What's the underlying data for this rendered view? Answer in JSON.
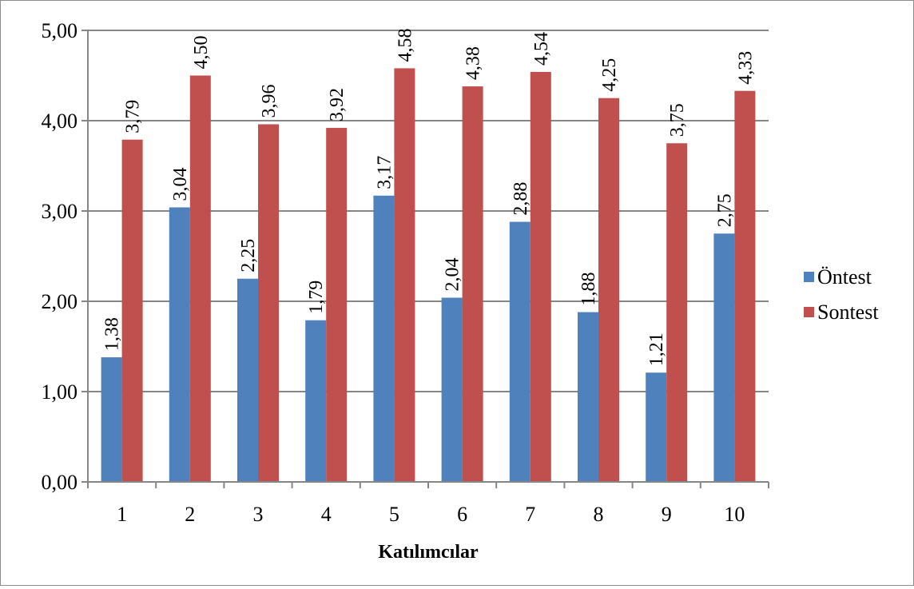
{
  "chart_data": {
    "type": "bar",
    "title": "",
    "xlabel": "Katılımcılar",
    "ylabel": "",
    "ylim": [
      0,
      5
    ],
    "y_ticks": [
      "0,00",
      "1,00",
      "2,00",
      "3,00",
      "4,00",
      "5,00"
    ],
    "grid": true,
    "legend_position": "right",
    "categories": [
      "1",
      "2",
      "3",
      "4",
      "5",
      "6",
      "7",
      "8",
      "9",
      "10"
    ],
    "series": [
      {
        "name": "Öntest",
        "color": "#4F81BD",
        "values": [
          1.38,
          3.04,
          2.25,
          1.79,
          3.17,
          2.04,
          2.88,
          1.88,
          1.21,
          2.75
        ],
        "labels": [
          "1,38",
          "3,04",
          "2,25",
          "1,79",
          "3,17",
          "2,04",
          "2,88",
          "1,88",
          "1,21",
          "2,75"
        ]
      },
      {
        "name": "Sontest",
        "color": "#C0504D",
        "values": [
          3.79,
          4.5,
          3.96,
          3.92,
          4.58,
          4.38,
          4.54,
          4.25,
          3.75,
          4.33
        ],
        "labels": [
          "3,79",
          "4,50",
          "3,96",
          "3,92",
          "4,58",
          "4,38",
          "4,54",
          "4,25",
          "3,75",
          "4,33"
        ]
      }
    ]
  }
}
